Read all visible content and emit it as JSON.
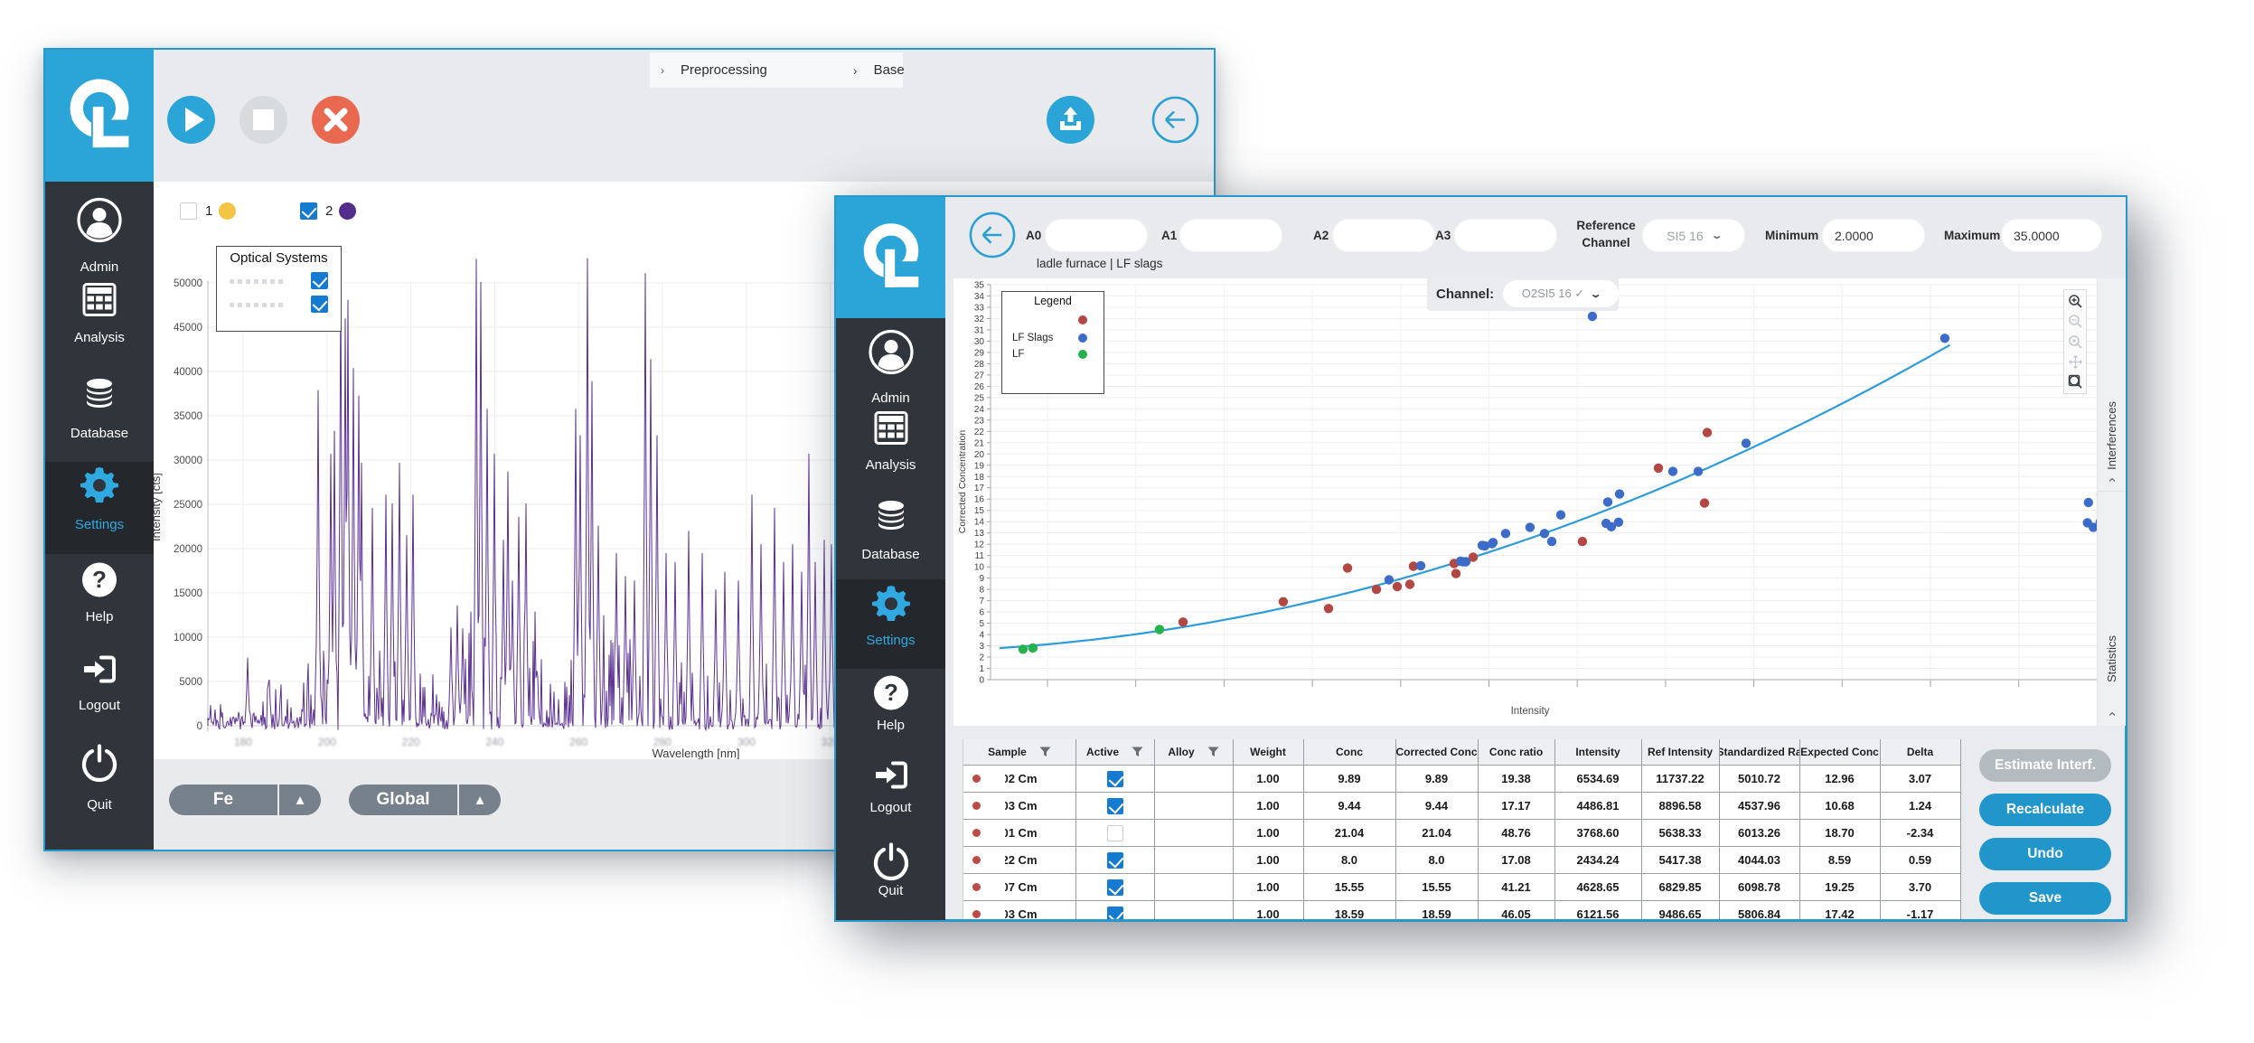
{
  "colors": {
    "brand_cyan": "#2ba4d7",
    "window_border": "#2698cc",
    "titlebar_bg": "#e8eaed",
    "sidebar_bg": "#30353b",
    "sidebar_active": "#2fa9e0",
    "button_blue": "#2196cb",
    "button_disabled": "#b3bac0",
    "cancel_red": "#e86850",
    "stop_gray": "#d8dbde",
    "pill_gray": "#76818b",
    "checkbox_blue": "#147bd1",
    "table_border": "#9aa0a6",
    "row_dot_red": "#bc4a46"
  },
  "back_window": {
    "breadcrumb": {
      "leading_chevron": "›",
      "items": [
        "Preprocessing",
        "Base"
      ],
      "separator": "›"
    },
    "toolbar_icons": [
      "play",
      "stop",
      "cancel",
      "upload",
      "back-arrow"
    ],
    "sidebar": {
      "items": [
        "Admin",
        "Analysis",
        "Database",
        "Settings",
        "Help",
        "Logout",
        "Quit"
      ],
      "active": "Settings"
    },
    "series_toggles": [
      {
        "label": "1",
        "checked": false,
        "color": "#f4c544"
      },
      {
        "label": "2",
        "checked": true,
        "color": "#542c8c"
      }
    ],
    "legend": {
      "title": "Optical Systems",
      "rows": [
        {
          "label": "",
          "checked": true
        },
        {
          "label": "",
          "checked": true
        }
      ]
    },
    "footer_dropdowns": [
      {
        "label": "Fe"
      },
      {
        "label": "Global"
      }
    ]
  },
  "front_window": {
    "header": {
      "fields": [
        {
          "label": "A0",
          "value": ""
        },
        {
          "label": "A1",
          "value": ""
        },
        {
          "label": "A2",
          "value": ""
        },
        {
          "label": "A3",
          "value": ""
        }
      ],
      "reference_channel": {
        "label": "Reference Channel",
        "value": "SI5 16"
      },
      "minimum": {
        "label": "Minimum",
        "value": "2.0000"
      },
      "maximum": {
        "label": "Maximum",
        "value": "35.0000"
      },
      "subtitle": "ladle furnace | LF slags"
    },
    "channel_control": {
      "label": "Channel:",
      "value": "O2SI5 16 ✓"
    },
    "sidebar": {
      "items": [
        "Admin",
        "Analysis",
        "Database",
        "Settings",
        "Help",
        "Logout",
        "Quit"
      ],
      "active": "Settings"
    },
    "side_tabs": [
      {
        "label": "Interferences"
      },
      {
        "label": "Statistics"
      }
    ],
    "zoom_tools": [
      "zoom-in",
      "zoom-out",
      "zoom-reset",
      "pan",
      "zoom-box"
    ],
    "table": {
      "columns": [
        "Sample",
        "Active",
        "Alloy",
        "Weight",
        "Conc",
        "Corrected Conc",
        "Conc ratio",
        "Intensity",
        "Ref Intensity",
        "Standardized Ra",
        "Expected Conc",
        "Delta"
      ],
      "filter_columns": [
        0,
        1,
        2
      ],
      "rows": [
        {
          "sample": "02 Cm",
          "active": true,
          "alloy": "",
          "weight": "1.00",
          "conc": "9.89",
          "corrected_conc": "9.89",
          "conc_ratio": "19.38",
          "intensity": "6534.69",
          "ref_intensity": "11737.22",
          "standardized_ratio": "5010.72",
          "expected_conc": "12.96",
          "delta": "3.07"
        },
        {
          "sample": "03 Cm",
          "active": true,
          "alloy": "",
          "weight": "1.00",
          "conc": "9.44",
          "corrected_conc": "9.44",
          "conc_ratio": "17.17",
          "intensity": "4486.81",
          "ref_intensity": "8896.58",
          "standardized_ratio": "4537.96",
          "expected_conc": "10.68",
          "delta": "1.24"
        },
        {
          "sample": "01 Cm",
          "active": false,
          "alloy": "",
          "weight": "1.00",
          "conc": "21.04",
          "corrected_conc": "21.04",
          "conc_ratio": "48.76",
          "intensity": "3768.60",
          "ref_intensity": "5638.33",
          "standardized_ratio": "6013.26",
          "expected_conc": "18.70",
          "delta": "-2.34"
        },
        {
          "sample": "22 Cm",
          "active": true,
          "alloy": "",
          "weight": "1.00",
          "conc": "8.0",
          "corrected_conc": "8.0",
          "conc_ratio": "17.08",
          "intensity": "2434.24",
          "ref_intensity": "5417.38",
          "standardized_ratio": "4044.03",
          "expected_conc": "8.59",
          "delta": "0.59"
        },
        {
          "sample": "07 Cm",
          "active": true,
          "alloy": "",
          "weight": "1.00",
          "conc": "15.55",
          "corrected_conc": "15.55",
          "conc_ratio": "41.21",
          "intensity": "4628.65",
          "ref_intensity": "6829.85",
          "standardized_ratio": "6098.78",
          "expected_conc": "19.25",
          "delta": "3.70"
        },
        {
          "sample": "03 Cm",
          "active": true,
          "alloy": "",
          "weight": "1.00",
          "conc": "18.59",
          "corrected_conc": "18.59",
          "conc_ratio": "46.05",
          "intensity": "6121.56",
          "ref_intensity": "9486.65",
          "standardized_ratio": "5806.84",
          "expected_conc": "17.42",
          "delta": "-1.17"
        }
      ]
    },
    "action_buttons": [
      {
        "label": "Estimate Interf.",
        "enabled": false
      },
      {
        "label": "Recalculate",
        "enabled": true
      },
      {
        "label": "Undo",
        "enabled": true
      },
      {
        "label": "Save",
        "enabled": true
      }
    ]
  },
  "chart_data": [
    {
      "id": "spectrum",
      "type": "line",
      "title": "",
      "xlabel": "Wavelength [nm]",
      "ylabel": "Intensity [cts]",
      "xlim": [
        171.6,
        322
      ],
      "ylim": [
        -2000,
        56000
      ],
      "yticks": [
        0,
        5000,
        10000,
        15000,
        20000,
        25000,
        30000,
        35000,
        40000,
        45000,
        50000
      ],
      "xticks": [
        180,
        200,
        220,
        240,
        260,
        280,
        300,
        320
      ],
      "xtick_labels_blurred": true,
      "grid": true,
      "series_color": "#5c3193",
      "peaks": [
        [
          181.1,
          7700
        ],
        [
          186.2,
          5200
        ],
        [
          197.9,
          37900
        ],
        [
          200.9,
          30700
        ],
        [
          201.8,
          33300
        ],
        [
          203.3,
          50600
        ],
        [
          204.4,
          46000
        ],
        [
          205.0,
          48100
        ],
        [
          206.3,
          40400
        ],
        [
          207.6,
          37300
        ],
        [
          208.2,
          29700
        ],
        [
          210.8,
          24600
        ],
        [
          214.0,
          26100
        ],
        [
          215.6,
          25100
        ],
        [
          217.3,
          29700
        ],
        [
          219.0,
          21500
        ],
        [
          220.5,
          26100
        ],
        [
          229.5,
          11100
        ],
        [
          231.0,
          13600
        ],
        [
          232.4,
          11000
        ],
        [
          235.6,
          52700
        ],
        [
          236.7,
          50100
        ],
        [
          238.2,
          35800
        ],
        [
          239.9,
          30700
        ],
        [
          242.1,
          21000
        ],
        [
          243.1,
          28700
        ],
        [
          244.2,
          16400
        ],
        [
          245.7,
          23600
        ],
        [
          247.4,
          25100
        ],
        [
          259.3,
          35800
        ],
        [
          260.4,
          32800
        ],
        [
          262.1,
          52800
        ],
        [
          263.2,
          38900
        ],
        [
          264.7,
          22600
        ],
        [
          269.0,
          19500
        ],
        [
          271.2,
          16900
        ],
        [
          273.3,
          16400
        ],
        [
          275.9,
          51100
        ],
        [
          277.2,
          41400
        ],
        [
          278.7,
          32800
        ],
        [
          280.9,
          19500
        ],
        [
          283.0,
          18500
        ],
        [
          286.3,
          22000
        ],
        [
          289.5,
          19500
        ],
        [
          292.7,
          15400
        ],
        [
          294.9,
          17400
        ],
        [
          298.1,
          16400
        ],
        [
          301.3,
          26100
        ],
        [
          303.5,
          20500
        ],
        [
          306.7,
          24600
        ],
        [
          308.9,
          18500
        ],
        [
          311.0,
          20500
        ],
        [
          313.2,
          17400
        ],
        [
          314.9,
          30700
        ],
        [
          316.4,
          18500
        ],
        [
          318.6,
          21000
        ],
        [
          320.3,
          20500
        ]
      ],
      "noise_profile": [
        [
          171.6,
          183,
          2600
        ],
        [
          183,
          195,
          5200
        ],
        [
          195,
          222,
          10000
        ],
        [
          222,
          232,
          6000
        ],
        [
          232,
          252,
          13000
        ],
        [
          252,
          257,
          7000
        ],
        [
          257,
          266,
          13000
        ],
        [
          266,
          278,
          11000
        ],
        [
          278,
          296,
          8500
        ],
        [
          296,
          322,
          7500
        ]
      ],
      "noise_seed": 20240613
    },
    {
      "id": "calibration",
      "type": "scatter",
      "title": "",
      "xlabel": "Intensity",
      "ylabel": "Corrected Concentration",
      "xlim": [
        0,
        11300
      ],
      "ylim": [
        0,
        35
      ],
      "grid": true,
      "legend": {
        "title": "Legend",
        "position": "top-left"
      },
      "series": [
        {
          "name": "",
          "color": "#b34742",
          "points": [
            [
              1957,
              5.1
            ],
            [
              2976,
              6.9
            ],
            [
              3436,
              6.3
            ],
            [
              3629,
              9.9
            ],
            [
              3923,
              8.0
            ],
            [
              4134,
              8.25
            ],
            [
              4263,
              8.45
            ],
            [
              4299,
              10.05
            ],
            [
              4713,
              10.3
            ],
            [
              4731,
              9.4
            ],
            [
              4906,
              10.85
            ],
            [
              6017,
              12.25
            ],
            [
              6789,
              18.75
            ],
            [
              7258,
              15.65
            ],
            [
              7285,
              21.9
            ]
          ]
        },
        {
          "name": "LF Slags",
          "color": "#3c6cc8",
          "points": [
            [
              4051,
              8.85
            ],
            [
              4373,
              10.1
            ],
            [
              4777,
              10.5
            ],
            [
              4805,
              10.45
            ],
            [
              4832,
              10.45
            ],
            [
              4998,
              11.9
            ],
            [
              5025,
              11.85
            ],
            [
              5099,
              12.05
            ],
            [
              5108,
              12.15
            ],
            [
              5236,
              12.95
            ],
            [
              5484,
              13.5
            ],
            [
              5631,
              12.95
            ],
            [
              5705,
              12.25
            ],
            [
              5797,
              14.6
            ],
            [
              6257,
              13.85
            ],
            [
              6275,
              15.75
            ],
            [
              6311,
              13.55
            ],
            [
              6384,
              13.95
            ],
            [
              6394,
              16.45
            ],
            [
              6936,
              18.45
            ],
            [
              7193,
              18.45
            ],
            [
              7680,
              20.95
            ],
            [
              6118,
              32.2
            ],
            [
              9701,
              30.25
            ],
            [
              11150,
              13.9
            ],
            [
              11210,
              13.5
            ],
            [
              11280,
              13.95
            ],
            [
              11160,
              15.7
            ],
            [
              11290,
              16.4
            ]
          ]
        },
        {
          "name": "LF",
          "color": "#25b14c",
          "points": [
            [
              330,
              2.7
            ],
            [
              431,
              2.8
            ],
            [
              1718,
              4.45
            ]
          ]
        }
      ],
      "fit_curve": {
        "color": "#2e9cd8",
        "a": 2.749,
        "b": 0.0005291,
        "c": 2.2871e-07,
        "x_min": 92,
        "x_max": 9800
      }
    }
  ]
}
